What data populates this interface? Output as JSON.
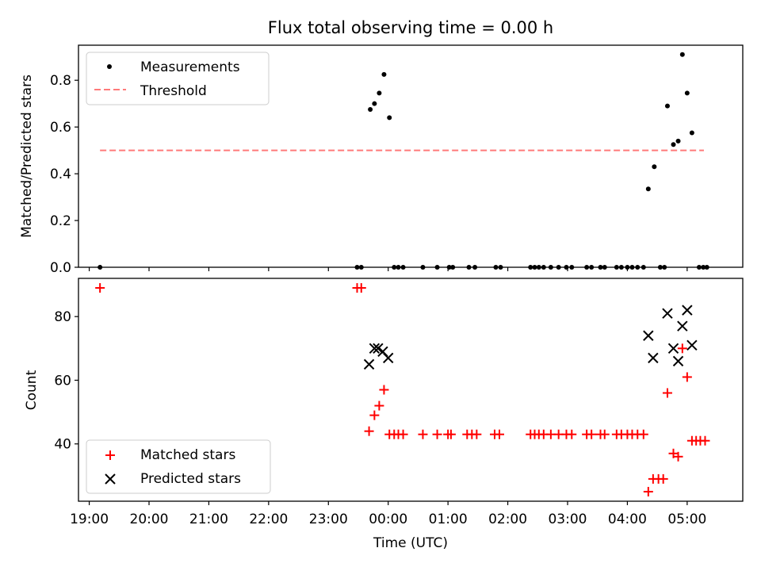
{
  "chart_data": [
    {
      "type": "scatter",
      "title": "Flux total observing time = 0.00 h",
      "xlabel": "",
      "ylabel": "Matched/Predicted stars",
      "xlim": [
        18.82,
        29.93
      ],
      "ylim": [
        0,
        0.95
      ],
      "x_tick_labels": [
        "19:00",
        "20:00",
        "21:00",
        "22:00",
        "23:00",
        "00:00",
        "01:00",
        "02:00",
        "03:00",
        "04:00",
        "05:00"
      ],
      "y_ticks": [
        0.0,
        0.2,
        0.4,
        0.6,
        0.8
      ],
      "y_tick_labels": [
        "0.0",
        "0.2",
        "0.4",
        "0.6",
        "0.8"
      ],
      "legend": {
        "position": "top-left",
        "entries": [
          "Measurements",
          "Threshold"
        ]
      },
      "threshold": {
        "name": "Threshold",
        "value": 0.5,
        "x_range": [
          19.18,
          29.28
        ],
        "color": "#ff7a7a"
      },
      "series": [
        {
          "name": "Measurements",
          "marker": "dot",
          "color": "#000000",
          "points": [
            [
              19.18,
              0.0
            ],
            [
              23.48,
              0.0
            ],
            [
              23.55,
              0.0
            ],
            [
              23.7,
              0.675
            ],
            [
              23.77,
              0.7
            ],
            [
              23.85,
              0.745
            ],
            [
              23.93,
              0.825
            ],
            [
              24.02,
              0.64
            ],
            [
              24.1,
              0.0
            ],
            [
              24.17,
              0.0
            ],
            [
              24.25,
              0.0
            ],
            [
              24.58,
              0.0
            ],
            [
              24.82,
              0.0
            ],
            [
              25.02,
              0.0
            ],
            [
              25.08,
              0.0
            ],
            [
              25.35,
              0.0
            ],
            [
              25.45,
              0.0
            ],
            [
              25.8,
              0.0
            ],
            [
              25.88,
              0.0
            ],
            [
              26.38,
              0.0
            ],
            [
              26.45,
              0.0
            ],
            [
              26.52,
              0.0
            ],
            [
              26.6,
              0.0
            ],
            [
              26.72,
              0.0
            ],
            [
              26.85,
              0.0
            ],
            [
              26.98,
              0.0
            ],
            [
              27.07,
              0.0
            ],
            [
              27.32,
              0.0
            ],
            [
              27.4,
              0.0
            ],
            [
              27.55,
              0.0
            ],
            [
              27.62,
              0.0
            ],
            [
              27.82,
              0.0
            ],
            [
              27.9,
              0.0
            ],
            [
              28.0,
              0.0
            ],
            [
              28.08,
              0.0
            ],
            [
              28.17,
              0.0
            ],
            [
              28.27,
              0.0
            ],
            [
              28.35,
              0.335
            ],
            [
              28.45,
              0.43
            ],
            [
              28.55,
              0.0
            ],
            [
              28.62,
              0.0
            ],
            [
              28.67,
              0.69
            ],
            [
              28.77,
              0.525
            ],
            [
              28.85,
              0.54
            ],
            [
              28.92,
              0.91
            ],
            [
              29.0,
              0.745
            ],
            [
              29.08,
              0.575
            ],
            [
              29.2,
              0.0
            ],
            [
              29.27,
              0.0
            ],
            [
              29.33,
              0.0
            ]
          ]
        }
      ]
    },
    {
      "type": "scatter",
      "title": "",
      "xlabel": "Time (UTC)",
      "ylabel": "Count",
      "xlim": [
        18.82,
        29.93
      ],
      "ylim": [
        22,
        92
      ],
      "x_ticks": [
        19,
        20,
        21,
        22,
        23,
        24,
        25,
        26,
        27,
        28,
        29
      ],
      "x_tick_labels": [
        "19:00",
        "20:00",
        "21:00",
        "22:00",
        "23:00",
        "00:00",
        "01:00",
        "02:00",
        "03:00",
        "04:00",
        "05:00"
      ],
      "y_ticks": [
        40,
        60,
        80
      ],
      "y_tick_labels": [
        "40",
        "60",
        "80"
      ],
      "legend": {
        "position": "bottom-left",
        "entries": [
          "Matched stars",
          "Predicted stars"
        ]
      },
      "series": [
        {
          "name": "Matched stars",
          "marker": "plus",
          "color": "#ff0000",
          "points": [
            [
              19.18,
              89
            ],
            [
              23.48,
              89
            ],
            [
              23.55,
              89
            ],
            [
              23.68,
              44
            ],
            [
              23.77,
              49
            ],
            [
              23.85,
              52
            ],
            [
              23.93,
              57
            ],
            [
              24.02,
              43
            ],
            [
              24.1,
              43
            ],
            [
              24.17,
              43
            ],
            [
              24.25,
              43
            ],
            [
              24.58,
              43
            ],
            [
              24.82,
              43
            ],
            [
              25.0,
              43
            ],
            [
              25.05,
              43
            ],
            [
              25.32,
              43
            ],
            [
              25.4,
              43
            ],
            [
              25.48,
              43
            ],
            [
              25.78,
              43
            ],
            [
              25.86,
              43
            ],
            [
              26.38,
              43
            ],
            [
              26.45,
              43
            ],
            [
              26.52,
              43
            ],
            [
              26.6,
              43
            ],
            [
              26.72,
              43
            ],
            [
              26.85,
              43
            ],
            [
              26.98,
              43
            ],
            [
              27.07,
              43
            ],
            [
              27.32,
              43
            ],
            [
              27.4,
              43
            ],
            [
              27.55,
              43
            ],
            [
              27.62,
              43
            ],
            [
              27.82,
              43
            ],
            [
              27.9,
              43
            ],
            [
              28.0,
              43
            ],
            [
              28.08,
              43
            ],
            [
              28.17,
              43
            ],
            [
              28.27,
              43
            ],
            [
              28.35,
              25
            ],
            [
              28.43,
              29
            ],
            [
              28.52,
              29
            ],
            [
              28.6,
              29
            ],
            [
              28.67,
              56
            ],
            [
              28.77,
              37
            ],
            [
              28.85,
              36
            ],
            [
              28.92,
              70
            ],
            [
              29.0,
              61
            ],
            [
              29.08,
              41
            ],
            [
              29.15,
              41
            ],
            [
              29.22,
              41
            ],
            [
              29.3,
              41
            ]
          ]
        },
        {
          "name": "Predicted stars",
          "marker": "x",
          "color": "#000000",
          "points": [
            [
              23.68,
              65
            ],
            [
              23.77,
              70
            ],
            [
              23.83,
              70
            ],
            [
              23.91,
              69
            ],
            [
              24.0,
              67
            ],
            [
              28.35,
              74
            ],
            [
              28.43,
              67
            ],
            [
              28.67,
              81
            ],
            [
              28.77,
              70
            ],
            [
              28.85,
              66
            ],
            [
              28.92,
              77
            ],
            [
              29.0,
              82
            ],
            [
              29.08,
              71
            ]
          ]
        }
      ]
    }
  ]
}
